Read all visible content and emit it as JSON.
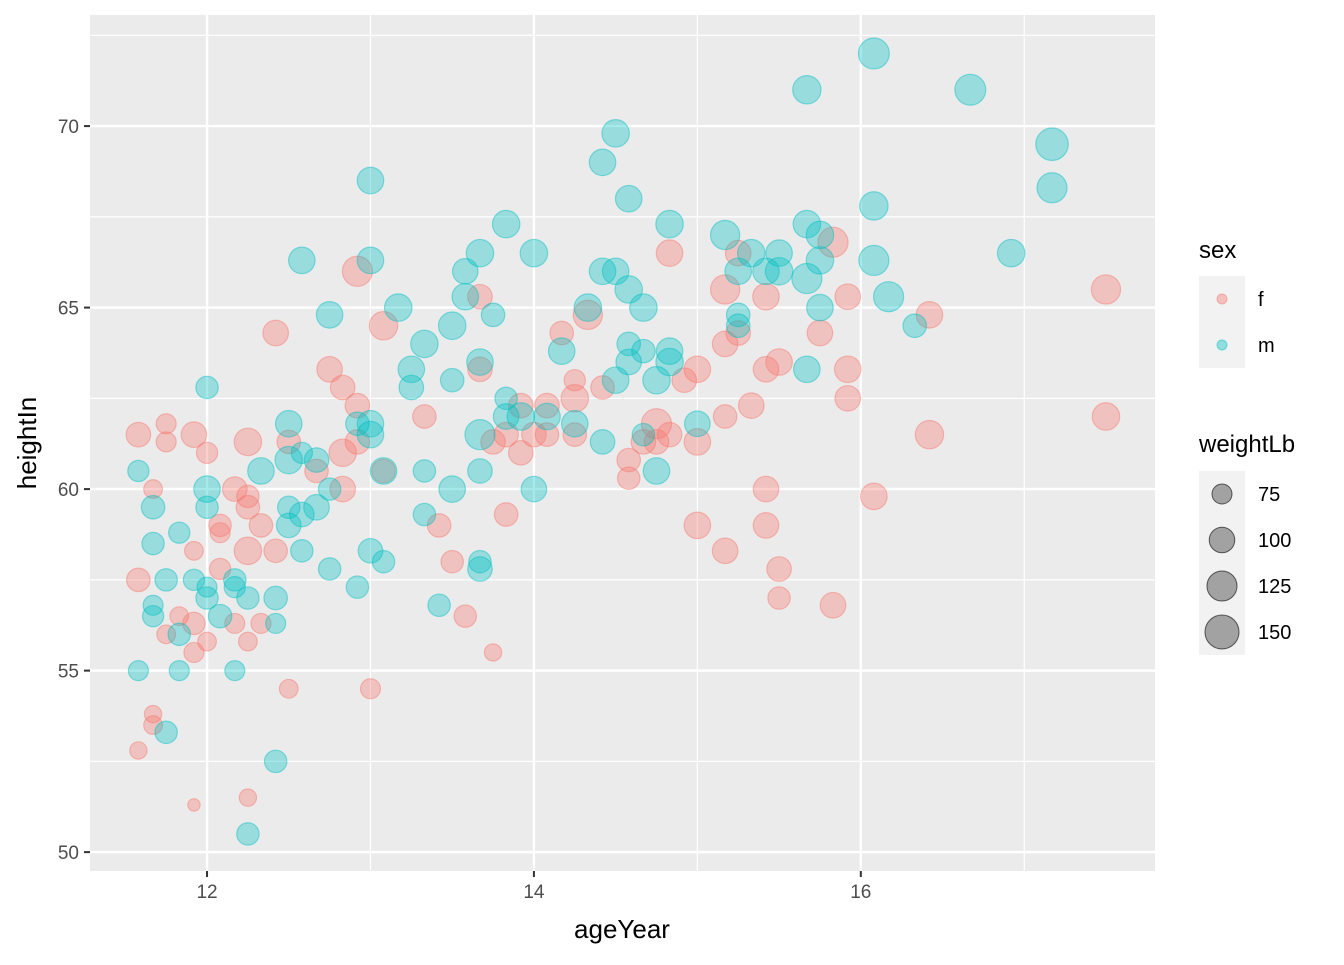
{
  "chart_data": {
    "type": "scatter",
    "xlabel": "ageYear",
    "ylabel": "heightIn",
    "xlim": [
      11.284,
      17.8
    ],
    "ylim": [
      49.48,
      73.06
    ],
    "x_ticks": [
      12,
      14,
      16
    ],
    "y_ticks": [
      50,
      55,
      60,
      65,
      70
    ],
    "grid": true,
    "colors": {
      "f": "#F8766D",
      "m": "#00BFC4",
      "panel": "#EBEBEB"
    },
    "legend": {
      "placement": "right",
      "color_title": "sex",
      "color_entries": [
        "f",
        "m"
      ],
      "size_title": "weightLb",
      "size_entries": [
        75,
        100,
        125,
        150
      ]
    },
    "series": [
      {
        "name": "f",
        "points_xyw": [
          [
            11.58,
            61.5,
            95
          ],
          [
            11.75,
            61.8,
            75
          ],
          [
            11.75,
            61.3,
            75
          ],
          [
            11.92,
            61.5,
            100
          ],
          [
            12.0,
            61.0,
            80
          ],
          [
            11.67,
            60.0,
            70
          ],
          [
            11.58,
            57.5,
            90
          ],
          [
            11.92,
            58.3,
            70
          ],
          [
            11.83,
            56.5,
            70
          ],
          [
            11.75,
            56.0,
            70
          ],
          [
            11.92,
            56.3,
            85
          ],
          [
            12.0,
            55.8,
            70
          ],
          [
            11.92,
            55.5,
            75
          ],
          [
            11.67,
            53.8,
            65
          ],
          [
            11.67,
            53.5,
            70
          ],
          [
            11.58,
            52.8,
            65
          ],
          [
            11.92,
            51.3,
            50.5
          ],
          [
            12.25,
            51.5,
            65
          ],
          [
            12.17,
            60.0,
            95
          ],
          [
            12.25,
            61.3,
            110
          ],
          [
            12.25,
            59.8,
            85
          ],
          [
            12.25,
            59.5,
            90
          ],
          [
            12.08,
            59.0,
            85
          ],
          [
            12.08,
            58.8,
            75
          ],
          [
            12.25,
            58.3,
            110
          ],
          [
            12.08,
            57.8,
            80
          ],
          [
            12.17,
            56.3,
            75
          ],
          [
            12.25,
            55.8,
            70
          ],
          [
            12.33,
            56.3,
            75
          ],
          [
            12.33,
            59.0,
            90
          ],
          [
            12.42,
            58.3,
            90
          ],
          [
            12.42,
            64.3,
            100
          ],
          [
            12.5,
            61.3,
            90
          ],
          [
            12.5,
            54.5,
            70
          ],
          [
            12.67,
            60.5,
            90
          ],
          [
            12.75,
            63.3,
            100
          ],
          [
            12.83,
            62.8,
            95
          ],
          [
            12.83,
            61.0,
            110
          ],
          [
            12.83,
            60.0,
            100
          ],
          [
            12.92,
            62.3,
            95
          ],
          [
            12.92,
            66.0,
            125
          ],
          [
            12.92,
            61.3,
            95
          ],
          [
            13.08,
            64.5,
            115
          ],
          [
            13.08,
            60.5,
            90
          ],
          [
            13.0,
            54.5,
            75
          ],
          [
            13.33,
            62.0,
            90
          ],
          [
            13.42,
            59.0,
            90
          ],
          [
            13.5,
            58.0,
            85
          ],
          [
            13.58,
            56.5,
            85
          ],
          [
            13.67,
            65.3,
            95
          ],
          [
            13.67,
            63.3,
            95
          ],
          [
            13.75,
            61.3,
            95
          ],
          [
            13.75,
            55.5,
            65
          ],
          [
            13.83,
            59.3,
            90
          ],
          [
            13.83,
            61.5,
            95
          ],
          [
            13.92,
            62.3,
            95
          ],
          [
            13.92,
            61.0,
            95
          ],
          [
            14.0,
            61.5,
            95
          ],
          [
            14.08,
            62.3,
            95
          ],
          [
            14.08,
            61.5,
            90
          ],
          [
            14.17,
            64.3,
            90
          ],
          [
            14.25,
            63.0,
            80
          ],
          [
            14.25,
            62.5,
            110
          ],
          [
            14.25,
            61.5,
            90
          ],
          [
            14.33,
            64.8,
            120
          ],
          [
            14.42,
            62.8,
            90
          ],
          [
            14.58,
            60.8,
            90
          ],
          [
            14.58,
            60.3,
            85
          ],
          [
            14.67,
            61.3,
            95
          ],
          [
            14.75,
            61.8,
            125
          ],
          [
            14.75,
            61.3,
            95
          ],
          [
            14.83,
            61.5,
            95
          ],
          [
            14.83,
            66.5,
            105
          ],
          [
            14.92,
            63.0,
            95
          ],
          [
            15.0,
            63.3,
            105
          ],
          [
            15.0,
            61.3,
            105
          ],
          [
            15.0,
            59.0,
            105
          ],
          [
            15.17,
            65.5,
            120
          ],
          [
            15.17,
            64.0,
            100
          ],
          [
            15.17,
            62.0,
            90
          ],
          [
            15.17,
            58.3,
            100
          ],
          [
            15.25,
            66.5,
            100
          ],
          [
            15.25,
            64.3,
            95
          ],
          [
            15.33,
            62.3,
            100
          ],
          [
            15.42,
            65.3,
            105
          ],
          [
            15.42,
            63.3,
            100
          ],
          [
            15.42,
            60.0,
            100
          ],
          [
            15.42,
            59.0,
            100
          ],
          [
            15.5,
            63.5,
            105
          ],
          [
            15.5,
            57.8,
            95
          ],
          [
            15.5,
            57.0,
            85
          ],
          [
            15.75,
            64.3,
            100
          ],
          [
            15.83,
            66.8,
            125
          ],
          [
            15.83,
            56.8,
            100
          ],
          [
            15.92,
            65.3,
            100
          ],
          [
            15.92,
            63.3,
            105
          ],
          [
            15.92,
            62.5,
            100
          ],
          [
            16.08,
            59.8,
            105
          ],
          [
            16.42,
            64.8,
            105
          ],
          [
            16.42,
            61.5,
            115
          ],
          [
            17.5,
            65.5,
            120
          ],
          [
            17.5,
            62.0,
            110
          ]
        ]
      },
      {
        "name": "m",
        "points_xyw": [
          [
            11.58,
            60.5,
            80
          ],
          [
            11.67,
            59.5,
            90
          ],
          [
            11.67,
            58.5,
            85
          ],
          [
            11.67,
            56.8,
            75
          ],
          [
            11.67,
            56.5,
            80
          ],
          [
            11.75,
            57.5,
            85
          ],
          [
            11.83,
            58.8,
            80
          ],
          [
            11.83,
            56.0,
            85
          ],
          [
            11.83,
            55.0,
            75
          ],
          [
            11.58,
            55.0,
            75
          ],
          [
            11.75,
            53.3,
            85
          ],
          [
            11.92,
            57.5,
            80
          ],
          [
            12.0,
            62.8,
            85
          ],
          [
            12.0,
            60.0,
            105
          ],
          [
            12.0,
            59.5,
            85
          ],
          [
            12.0,
            57.3,
            75
          ],
          [
            12.0,
            57.0,
            85
          ],
          [
            12.08,
            56.5,
            90
          ],
          [
            12.17,
            57.5,
            85
          ],
          [
            12.17,
            57.3,
            80
          ],
          [
            12.17,
            55.0,
            75
          ],
          [
            12.25,
            57.0,
            85
          ],
          [
            12.25,
            50.5,
            85
          ],
          [
            12.33,
            60.5,
            105
          ],
          [
            12.42,
            57.0,
            90
          ],
          [
            12.42,
            56.3,
            75
          ],
          [
            12.42,
            52.5,
            85
          ],
          [
            12.5,
            61.8,
            105
          ],
          [
            12.5,
            60.8,
            110
          ],
          [
            12.5,
            59.5,
            85
          ],
          [
            12.5,
            59.0,
            95
          ],
          [
            12.58,
            66.3,
            105
          ],
          [
            12.58,
            61.0,
            80
          ],
          [
            12.58,
            58.3,
            85
          ],
          [
            12.58,
            59.3,
            95
          ],
          [
            12.67,
            60.8,
            95
          ],
          [
            12.67,
            59.5,
            100
          ],
          [
            12.75,
            64.8,
            105
          ],
          [
            12.75,
            60.0,
            85
          ],
          [
            12.75,
            57.8,
            85
          ],
          [
            12.92,
            61.8,
            90
          ],
          [
            12.92,
            57.3,
            85
          ],
          [
            13.0,
            68.5,
            105
          ],
          [
            13.0,
            66.3,
            105
          ],
          [
            13.0,
            61.8,
            105
          ],
          [
            13.0,
            61.5,
            105
          ],
          [
            13.0,
            58.3,
            95
          ],
          [
            13.08,
            60.5,
            105
          ],
          [
            13.08,
            58.0,
            85
          ],
          [
            13.17,
            65.0,
            110
          ],
          [
            13.25,
            63.3,
            105
          ],
          [
            13.25,
            62.8,
            95
          ],
          [
            13.33,
            64.0,
            110
          ],
          [
            13.33,
            60.5,
            85
          ],
          [
            13.33,
            59.3,
            85
          ],
          [
            13.42,
            56.8,
            85
          ],
          [
            13.5,
            64.5,
            110
          ],
          [
            13.5,
            63.0,
            90
          ],
          [
            13.5,
            60.0,
            105
          ],
          [
            13.58,
            66.0,
            100
          ],
          [
            13.58,
            65.3,
            105
          ],
          [
            13.67,
            66.5,
            110
          ],
          [
            13.67,
            63.5,
            105
          ],
          [
            13.67,
            61.5,
            125
          ],
          [
            13.67,
            60.5,
            95
          ],
          [
            13.67,
            58.0,
            85
          ],
          [
            13.67,
            57.8,
            95
          ],
          [
            13.75,
            64.8,
            90
          ],
          [
            13.83,
            67.3,
            110
          ],
          [
            13.83,
            62.5,
            85
          ],
          [
            13.83,
            62.0,
            100
          ],
          [
            13.92,
            62.0,
            110
          ],
          [
            14.0,
            66.5,
            110
          ],
          [
            14.0,
            60.0,
            100
          ],
          [
            14.08,
            62.0,
            105
          ],
          [
            14.17,
            63.8,
            105
          ],
          [
            14.25,
            61.8,
            105
          ],
          [
            14.33,
            65.0,
            110
          ],
          [
            14.42,
            69.0,
            105
          ],
          [
            14.42,
            66.0,
            105
          ],
          [
            14.42,
            61.3,
            95
          ],
          [
            14.5,
            69.8,
            110
          ],
          [
            14.5,
            66.0,
            105
          ],
          [
            14.5,
            63.0,
            105
          ],
          [
            14.58,
            68.0,
            105
          ],
          [
            14.58,
            65.5,
            110
          ],
          [
            14.58,
            64.0,
            90
          ],
          [
            14.58,
            63.5,
            100
          ],
          [
            14.67,
            63.8,
            90
          ],
          [
            14.67,
            65.0,
            110
          ],
          [
            14.67,
            61.5,
            85
          ],
          [
            14.75,
            63.0,
            110
          ],
          [
            14.75,
            60.5,
            105
          ],
          [
            14.83,
            67.3,
            110
          ],
          [
            14.83,
            63.8,
            105
          ],
          [
            14.83,
            63.5,
            110
          ],
          [
            15.0,
            61.8,
            100
          ],
          [
            15.17,
            67.0,
            120
          ],
          [
            15.25,
            64.8,
            90
          ],
          [
            15.25,
            64.5,
            90
          ],
          [
            15.25,
            66.0,
            105
          ],
          [
            15.33,
            66.5,
            110
          ],
          [
            15.42,
            66.0,
            105
          ],
          [
            15.5,
            66.5,
            105
          ],
          [
            15.5,
            66.0,
            110
          ],
          [
            15.67,
            71.0,
            115
          ],
          [
            15.67,
            67.3,
            110
          ],
          [
            15.67,
            65.8,
            125
          ],
          [
            15.67,
            63.3,
            105
          ],
          [
            15.75,
            67.0,
            110
          ],
          [
            15.75,
            66.3,
            110
          ],
          [
            15.75,
            65.0,
            105
          ],
          [
            16.08,
            72.0,
            130
          ],
          [
            16.08,
            67.8,
            115
          ],
          [
            16.08,
            66.3,
            125
          ],
          [
            16.17,
            65.3,
            125
          ],
          [
            16.33,
            64.5,
            90
          ],
          [
            16.67,
            71.0,
            130
          ],
          [
            16.92,
            66.5,
            110
          ],
          [
            17.17,
            69.5,
            140
          ],
          [
            17.17,
            68.3,
            125
          ]
        ]
      }
    ]
  }
}
